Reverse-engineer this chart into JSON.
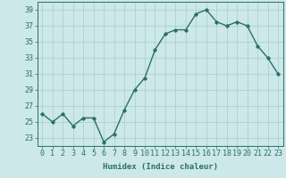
{
  "x": [
    0,
    1,
    2,
    3,
    4,
    5,
    6,
    7,
    8,
    9,
    10,
    11,
    12,
    13,
    14,
    15,
    16,
    17,
    18,
    19,
    20,
    21,
    22,
    23
  ],
  "y": [
    26,
    25,
    26,
    24.5,
    25.5,
    25.5,
    22.5,
    23.5,
    26.5,
    29,
    30.5,
    34,
    36,
    36.5,
    36.5,
    38.5,
    39,
    37.5,
    37,
    37.5,
    37,
    34.5,
    33,
    31
  ],
  "xlabel": "Humidex (Indice chaleur)",
  "line_color": "#2d6e6e",
  "marker": "D",
  "marker_size": 1.8,
  "line_width": 1.0,
  "bg_color": "#cce8e8",
  "grid_color": "#aacccc",
  "tick_color": "#2d6e6e",
  "spine_color": "#2d6e6e",
  "ylim": [
    22,
    40
  ],
  "yticks": [
    23,
    25,
    27,
    29,
    31,
    33,
    35,
    37,
    39
  ],
  "xlim": [
    -0.5,
    23.5
  ],
  "xticks": [
    0,
    1,
    2,
    3,
    4,
    5,
    6,
    7,
    8,
    9,
    10,
    11,
    12,
    13,
    14,
    15,
    16,
    17,
    18,
    19,
    20,
    21,
    22,
    23
  ],
  "xlabel_fontsize": 6.5,
  "tick_fontsize": 6.0
}
